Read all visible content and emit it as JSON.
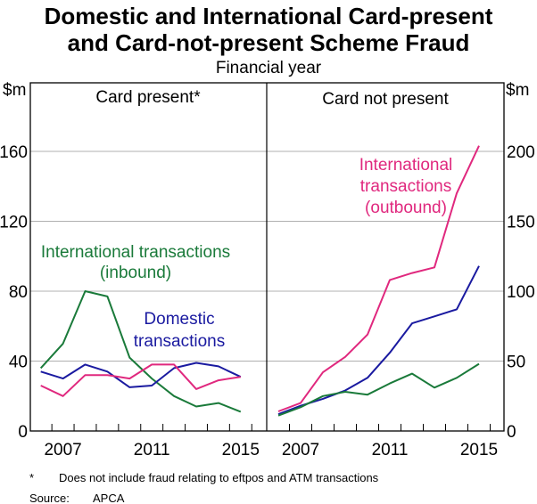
{
  "chart_data": [
    {
      "type": "line",
      "panel_title": "Card present*",
      "x": [
        2006,
        2007,
        2008,
        2009,
        2010,
        2011,
        2012,
        2013,
        2014,
        2015
      ],
      "xticks": [
        "2007",
        "2011",
        "2015"
      ],
      "ylabel": "$m",
      "ylim": [
        0,
        160
      ],
      "yticks": [
        "0",
        "40",
        "80",
        "120",
        "160"
      ],
      "series": [
        {
          "name": "International transactions (inbound)",
          "label_lines": [
            "International transactions",
            "(inbound)"
          ],
          "color": "#1a7a3a",
          "values": [
            36,
            50,
            80,
            77,
            42,
            30,
            20,
            14,
            16,
            11
          ]
        },
        {
          "name": "Domestic transactions",
          "label_lines": [
            "Domestic",
            "transactions"
          ],
          "color": "#1a1aa0",
          "values": [
            34,
            30,
            38,
            34,
            25,
            26,
            36,
            39,
            37,
            31
          ]
        },
        {
          "name": "International transactions (outbound)",
          "color": "#e0287e",
          "values": [
            26,
            20,
            32,
            32,
            30,
            38,
            38,
            24,
            29,
            31
          ]
        }
      ]
    },
    {
      "type": "line",
      "panel_title": "Card not present",
      "x": [
        2006,
        2007,
        2008,
        2009,
        2010,
        2011,
        2012,
        2013,
        2014,
        2015
      ],
      "xticks": [
        "2007",
        "2011",
        "2015"
      ],
      "ylabel": "$m",
      "ylim": [
        0,
        200
      ],
      "yticks": [
        "0",
        "50",
        "100",
        "150",
        "200"
      ],
      "series": [
        {
          "name": "International transactions (outbound)",
          "label_lines": [
            "International",
            "transactions",
            "(outbound)"
          ],
          "color": "#e0287e",
          "values": [
            14,
            20,
            42,
            53,
            69,
            108,
            113,
            117,
            170,
            204
          ]
        },
        {
          "name": "Domestic transactions",
          "color": "#1a1aa0",
          "values": [
            12,
            18,
            23,
            29,
            38,
            56,
            77,
            82,
            87,
            118
          ]
        },
        {
          "name": "International transactions (inbound)",
          "color": "#1a7a3a",
          "values": [
            11,
            17,
            25,
            28,
            26,
            34,
            41,
            31,
            38,
            48
          ]
        }
      ]
    }
  ],
  "title_lines": [
    "Domestic and International Card-present",
    "and Card-not-present Scheme Fraud"
  ],
  "subtitle": "Financial year",
  "footnote_marker": "*",
  "footnote": "Does not include fraud relating to eftpos and ATM transactions",
  "source_label": "Source:",
  "source": "APCA"
}
